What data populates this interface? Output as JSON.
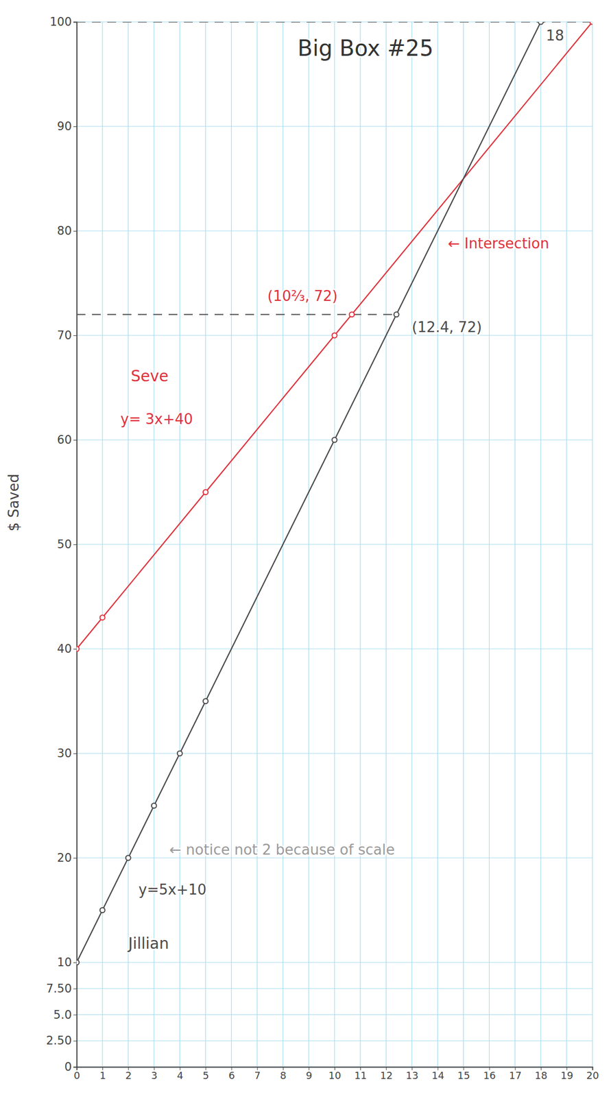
{
  "chart_data": {
    "type": "line",
    "title": "Big Box #25",
    "y_label": "$ Saved",
    "xlim": [
      0,
      20
    ],
    "xticks": [
      0,
      1,
      2,
      3,
      4,
      5,
      6,
      7,
      8,
      9,
      10,
      11,
      12,
      13,
      14,
      15,
      16,
      17,
      18,
      19,
      20
    ],
    "ylim": [
      0,
      100
    ],
    "yticks": [
      0,
      {
        "value": 2.5,
        "label": "2.50"
      },
      {
        "value": 5,
        "label": "5.0"
      },
      {
        "value": 7.5,
        "label": "7.50"
      },
      10,
      20,
      30,
      40,
      50,
      60,
      70,
      80,
      90,
      100
    ],
    "grid": true,
    "series": [
      {
        "name": "Seve",
        "color": "#e0323c",
        "marker": "circle",
        "line_style": "solid",
        "x": [
          0,
          1,
          5,
          10,
          10.67,
          20
        ],
        "values": [
          40,
          43,
          55,
          70,
          72,
          100
        ],
        "name_at": [
          2.1,
          65.6
        ]
      },
      {
        "name": "Jillian",
        "color": "#4a4a4a",
        "marker": "circle",
        "line_style": "solid",
        "x": [
          0,
          1,
          2,
          3,
          4,
          5,
          10,
          12.4,
          18
        ],
        "values": [
          10,
          15,
          20,
          25,
          30,
          35,
          60,
          72,
          100
        ],
        "name_at": [
          2.0,
          11.3
        ]
      }
    ],
    "reference_lines": [
      {
        "y": 100
      },
      {
        "y": 72,
        "x_end": 12.4
      }
    ],
    "annotations": [
      {
        "text": "y= 3x+40",
        "x": 1.7,
        "y": 61.5,
        "color": "#e0323c"
      },
      {
        "text": "y=5x+10",
        "x": 2.4,
        "y": 16.5,
        "color": "#4a4a4a"
      },
      {
        "text": "← notice not 2 because of scale",
        "x": 3.6,
        "y": 20.3,
        "color": "#9a9a9a"
      },
      {
        "text": "← Intersection",
        "x": 14.4,
        "y": 78.3,
        "color": "#e0323c"
      },
      {
        "text": "(10⅔, 72)",
        "x": 7.4,
        "y": 73.3,
        "color": "#e0323c"
      },
      {
        "text": "(12.4, 72)",
        "x": 13.0,
        "y": 70.3,
        "color": "#4a4a4a"
      },
      {
        "text": "18",
        "x": 18.2,
        "y": 98.2,
        "color": "#4a4a4a"
      }
    ]
  }
}
